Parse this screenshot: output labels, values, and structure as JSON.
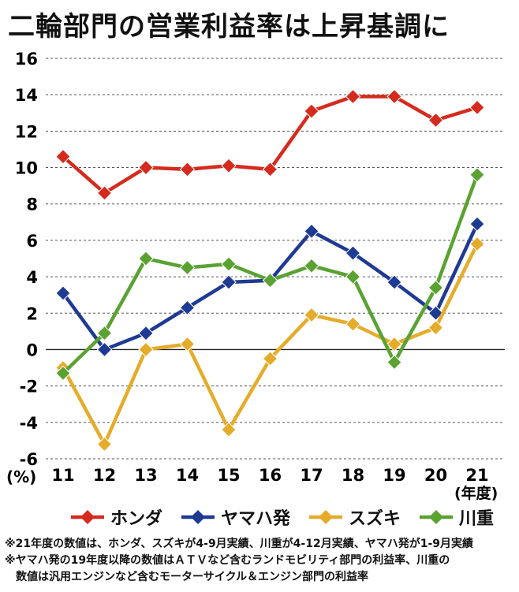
{
  "title": "二輪部門の営業利益率は上昇基調に",
  "chart_data": {
    "type": "line",
    "ylabel": "(%)",
    "xlabel": "(年度)",
    "x": [
      "11",
      "12",
      "13",
      "14",
      "15",
      "16",
      "17",
      "18",
      "19",
      "20",
      "21"
    ],
    "ylim": [
      -6,
      16
    ],
    "yticks": [
      -6,
      -4,
      -2,
      0,
      2,
      4,
      6,
      8,
      10,
      12,
      14,
      16
    ],
    "grid": true,
    "legend": "bottom",
    "series": [
      {
        "name": "ホンダ",
        "color": "#d52b1e",
        "values": [
          10.6,
          8.6,
          10.0,
          9.9,
          10.1,
          9.9,
          13.1,
          13.9,
          13.9,
          12.6,
          13.3
        ]
      },
      {
        "name": "ヤマハ発",
        "color": "#1f3a93",
        "values": [
          3.1,
          0.0,
          0.9,
          2.3,
          3.7,
          3.8,
          6.5,
          5.3,
          3.7,
          2.0,
          6.9
        ]
      },
      {
        "name": "スズキ",
        "color": "#e5ac2a",
        "values": [
          -1.0,
          -5.2,
          0.0,
          0.3,
          -4.4,
          -0.5,
          1.9,
          1.4,
          0.3,
          1.2,
          5.8
        ]
      },
      {
        "name": "川重",
        "color": "#5aa232",
        "values": [
          -1.3,
          0.9,
          5.0,
          4.5,
          4.7,
          3.8,
          4.6,
          4.0,
          -0.7,
          3.4,
          9.6
        ]
      }
    ]
  },
  "notes": [
    "※21年度の数値は、ホンダ、スズキが4-9月実績、川重が4-12月実績、ヤマハ発が1-9月実績",
    "※ヤマハ発の19年度以降の数値はＡＴＶなど含むランドモビリティ部門の利益率、川重の",
    "数値は汎用エンジンなど含むモーターサイクル＆エンジン部門の利益率"
  ]
}
